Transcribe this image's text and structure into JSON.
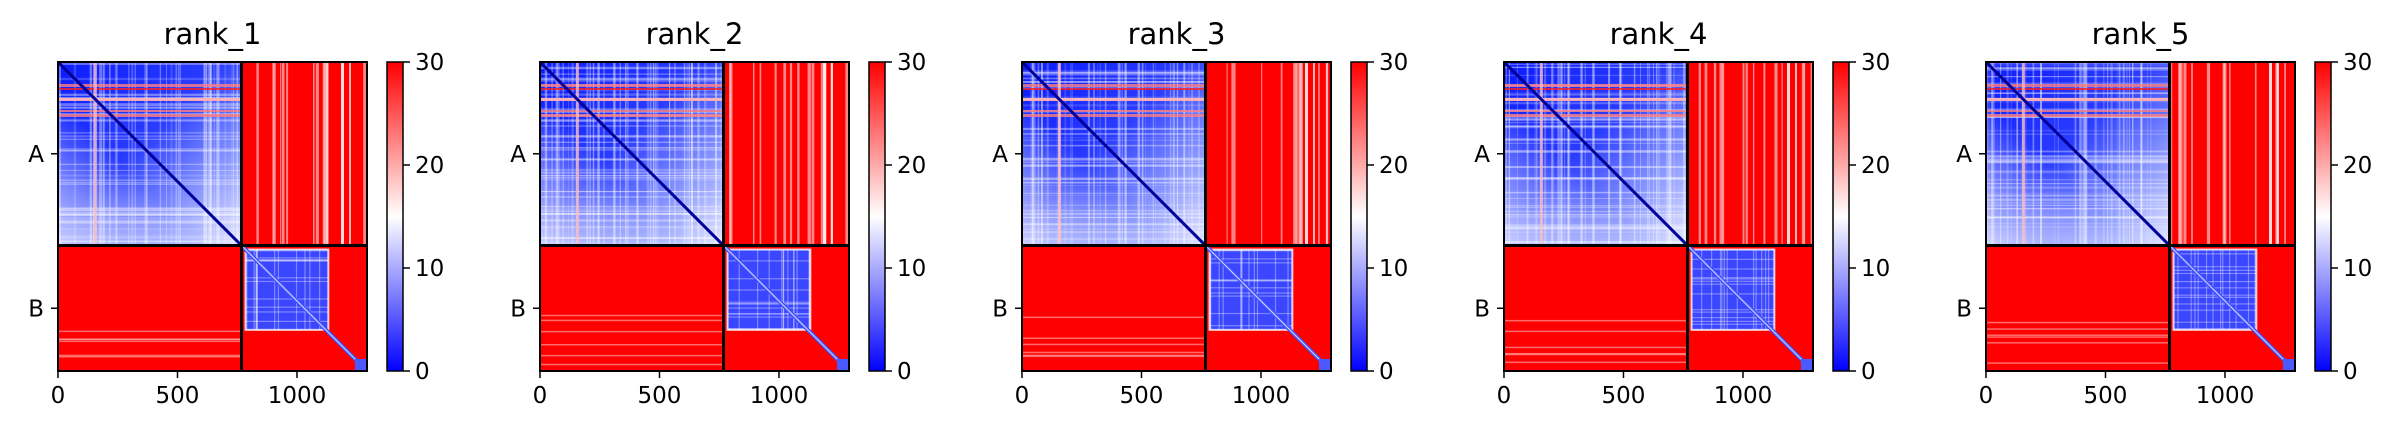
{
  "chart_data": {
    "type": "heatmap",
    "colormap": "bwr",
    "colormap_stops": [
      "#0000ff",
      "#ffffff",
      "#ff0000"
    ],
    "color_range": [
      0,
      30
    ],
    "grid": false,
    "matrix_size": 1293,
    "chain_boundary": 768,
    "chain_labels": [
      "A",
      "B"
    ],
    "x_ticks": [
      {
        "value": 0,
        "label": "0"
      },
      {
        "value": 500,
        "label": "500"
      },
      {
        "value": 1000,
        "label": "1000"
      }
    ],
    "colorbar_ticks": [
      {
        "value": 0,
        "label": "0"
      },
      {
        "value": 10,
        "label": "10"
      },
      {
        "value": 20,
        "label": "20"
      },
      {
        "value": 30,
        "label": "30"
      }
    ],
    "panels": [
      {
        "title": "rank_1"
      },
      {
        "title": "rank_2"
      },
      {
        "title": "rank_3"
      },
      {
        "title": "rank_4"
      },
      {
        "title": "rank_5"
      }
    ]
  }
}
